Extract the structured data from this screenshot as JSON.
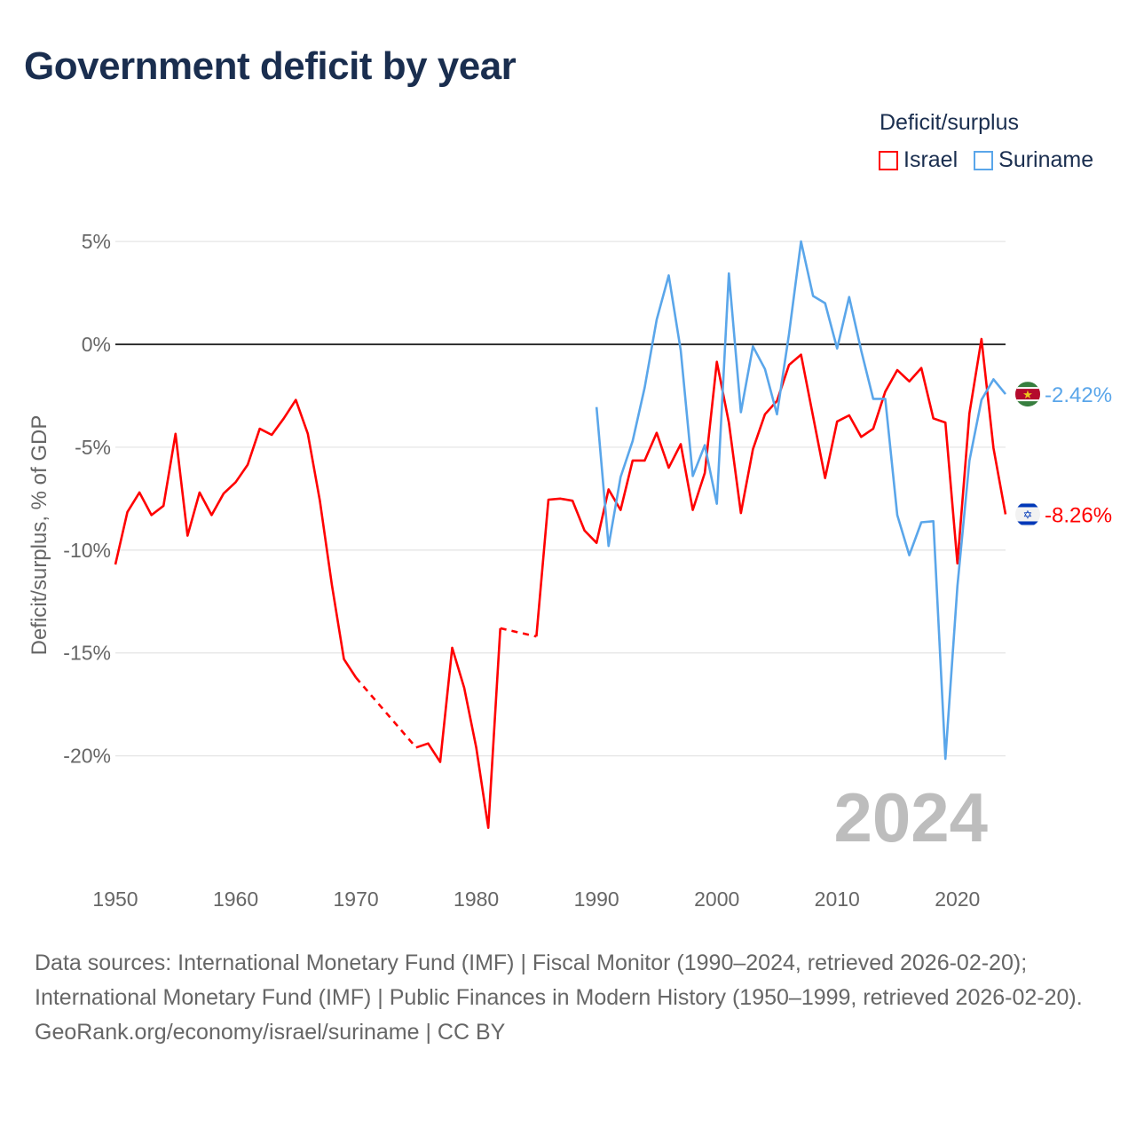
{
  "title": "Government deficit by year",
  "legend": {
    "title": "Deficit/surplus",
    "items": [
      {
        "name": "Israel",
        "color": "#ff0000"
      },
      {
        "name": "Suriname",
        "color": "#5aa6ea"
      }
    ]
  },
  "current_year": "2024",
  "end_labels": {
    "israel": "-8.26%",
    "suriname": "-2.42%"
  },
  "footer": {
    "sources": "Data sources: International Monetary Fund (IMF) | Fiscal Monitor (1990–2024, retrieved 2026-02-20); International Monetary Fund (IMF) | Public Finances in Modern History (1950–1999, retrieved 2026-02-20).",
    "credit": "GeoRank.org/economy/israel/suriname | CC BY"
  },
  "chart_data": {
    "type": "line",
    "title": "Government deficit by year",
    "xlabel": "",
    "ylabel": "Deficit/surplus, % of GDP",
    "xlim": [
      1950,
      2024
    ],
    "ylim": [
      -25,
      5
    ],
    "x_ticks": [
      1950,
      1960,
      1970,
      1980,
      1990,
      2000,
      2010,
      2020
    ],
    "y_ticks": [
      {
        "v": 5,
        "label": "5%"
      },
      {
        "v": 0,
        "label": "0%"
      },
      {
        "v": -5,
        "label": "-5%"
      },
      {
        "v": -10,
        "label": "-10%"
      },
      {
        "v": -15,
        "label": "-15%"
      },
      {
        "v": -20,
        "label": "-20%"
      }
    ],
    "grid": true,
    "legend_position": "top-right",
    "series": [
      {
        "name": "Israel",
        "color": "#ff0000",
        "start_year": 1950,
        "values": [
          -10.7,
          -8.15,
          -7.2,
          -8.3,
          -7.85,
          -4.35,
          -9.3,
          -7.2,
          -8.3,
          -7.25,
          -6.7,
          -5.85,
          -4.1,
          -4.4,
          -3.6,
          -2.7,
          -4.35,
          -7.6,
          -11.7,
          -15.3,
          -16.2,
          null,
          null,
          null,
          null,
          -19.6,
          -19.4,
          -20.3,
          -14.75,
          -16.7,
          -19.6,
          -23.5,
          -13.8,
          null,
          null,
          -14.2,
          -7.55,
          -7.5,
          -7.6,
          -9.05,
          -9.65,
          -7.05,
          -8.05,
          -5.65,
          -5.65,
          -4.3,
          -6.0,
          -4.85,
          -8.05,
          -6.25,
          -0.85,
          -3.8,
          -8.2,
          -5.1,
          -3.4,
          -2.75,
          -1.0,
          -0.5,
          -3.5,
          -6.5,
          -3.75,
          -3.45,
          -4.5,
          -4.1,
          -2.3,
          -1.25,
          -1.8,
          -1.15,
          -3.6,
          -3.8,
          -10.65,
          -3.35,
          0.26,
          -5.05,
          -8.26
        ]
      },
      {
        "name": "Suriname",
        "color": "#5aa6ea",
        "start_year": 1990,
        "values": [
          -3.05,
          -9.8,
          -6.45,
          -4.7,
          -2.1,
          1.2,
          3.35,
          -0.3,
          -6.4,
          -4.9,
          -7.75,
          3.45,
          -3.3,
          -0.1,
          -1.2,
          -3.4,
          0.5,
          5.0,
          2.35,
          2.0,
          -0.2,
          2.3,
          -0.3,
          -2.65,
          -2.65,
          -8.3,
          -10.25,
          -8.65,
          -8.6,
          -20.15,
          -11.75,
          -5.65,
          -2.7,
          -1.7,
          -2.42
        ]
      }
    ]
  }
}
